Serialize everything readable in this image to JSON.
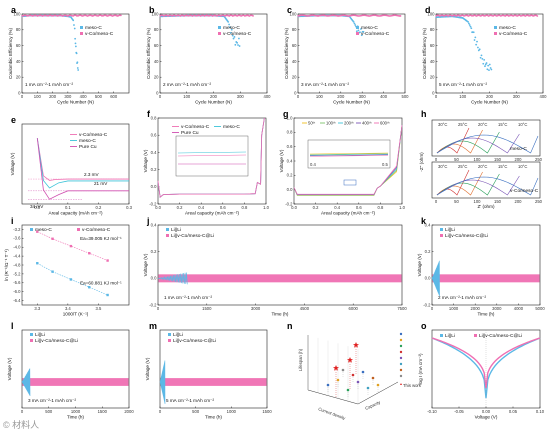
{
  "colors": {
    "blue": "#5bb8e6",
    "pink": "#ef6fb2",
    "purple": "#7a55b5",
    "green": "#7cc36b",
    "cyan": "#3cc3d8",
    "magenta": "#d04fb0",
    "gray": "#8a8a8a",
    "black": "#222222"
  },
  "watermark": "© 材料人",
  "chart_data": [
    {
      "id": "a",
      "type": "line",
      "label": "a",
      "xlabel": "Cycle Number (N)",
      "ylabel": "Coulombic Efficiency (%)",
      "xlim": [
        0,
        700
      ],
      "ylim": [
        0,
        100
      ],
      "xticks": [
        "0",
        "100",
        "200",
        "300",
        "400",
        "500",
        "600"
      ],
      "yticks": [
        "0",
        "20",
        "40",
        "60",
        "80",
        "100"
      ],
      "condition": "1 mA cm⁻²-1 mAh cm⁻²",
      "series": [
        {
          "name": "meso-C",
          "color": "blue",
          "x": [
            1,
            50,
            100,
            150,
            200,
            250,
            300,
            320,
            335,
            345,
            350,
            355,
            360,
            365,
            370
          ],
          "y": [
            97,
            98,
            98,
            98,
            98,
            98,
            97,
            96,
            92,
            80,
            65,
            55,
            40,
            30,
            25
          ]
        },
        {
          "name": "v-Co/meso-C",
          "color": "pink",
          "x": [
            1,
            100,
            200,
            300,
            400,
            500,
            600,
            650
          ],
          "y": [
            97,
            98,
            98,
            98,
            98,
            98,
            98,
            98
          ]
        }
      ]
    },
    {
      "id": "b",
      "type": "line",
      "label": "b",
      "xlabel": "Cycle Number (N)",
      "ylabel": "Coulombic Efficiency (%)",
      "xlim": [
        0,
        400
      ],
      "ylim": [
        0,
        100
      ],
      "xticks": [
        "0",
        "100",
        "200",
        "300",
        "400"
      ],
      "yticks": [
        "0",
        "20",
        "40",
        "60",
        "80",
        "100"
      ],
      "condition": "2 mA cm⁻²-1 mAh cm⁻²",
      "series": [
        {
          "name": "meso-C",
          "color": "blue",
          "x": [
            1,
            100,
            200,
            240,
            255,
            265,
            275,
            285,
            295,
            300
          ],
          "y": [
            97,
            98,
            98,
            97,
            90,
            80,
            70,
            62,
            65,
            60
          ]
        },
        {
          "name": "v-Co/meso-C",
          "color": "pink",
          "x": [
            1,
            100,
            200,
            300,
            350
          ],
          "y": [
            97,
            98,
            98,
            98,
            98
          ]
        }
      ]
    },
    {
      "id": "c",
      "type": "line",
      "label": "c",
      "xlabel": "Cycle Number (N)",
      "ylabel": "Coulombic Efficiency (%)",
      "xlim": [
        0,
        500
      ],
      "ylim": [
        0,
        100
      ],
      "xticks": [
        "0",
        "100",
        "200",
        "300",
        "400",
        "500"
      ],
      "yticks": [
        "0",
        "20",
        "40",
        "60",
        "80",
        "100"
      ],
      "condition": "3 mA cm⁻²-1 mAh cm⁻²",
      "series": [
        {
          "name": "meso-C",
          "color": "blue",
          "x": [
            1,
            100,
            200,
            240,
            260,
            275,
            290,
            310
          ],
          "y": [
            97,
            98,
            98,
            97,
            90,
            82,
            78,
            75
          ]
        },
        {
          "name": "v-Co/meso-C",
          "color": "pink",
          "x": [
            1,
            100,
            200,
            300,
            400,
            480
          ],
          "y": [
            97,
            98,
            98,
            98,
            98,
            98
          ]
        }
      ]
    },
    {
      "id": "d",
      "type": "line",
      "label": "d",
      "xlabel": "Cycle Number (N)",
      "ylabel": "Coulombic Efficiency (%)",
      "xlim": [
        0,
        400
      ],
      "ylim": [
        0,
        100
      ],
      "xticks": [
        "0",
        "100",
        "200",
        "300",
        "400"
      ],
      "yticks": [
        "0",
        "20",
        "40",
        "60",
        "80",
        "100"
      ],
      "condition": "5 mA cm⁻²-1 mAh cm⁻²",
      "series": [
        {
          "name": "meso-C",
          "color": "blue",
          "x": [
            1,
            60,
            100,
            120,
            135,
            150,
            160,
            170,
            180,
            195,
            210
          ],
          "y": [
            96,
            97,
            95,
            90,
            80,
            65,
            55,
            45,
            38,
            33,
            32
          ]
        },
        {
          "name": "v-Co/meso-C",
          "color": "pink",
          "x": [
            1,
            100,
            200,
            300,
            380
          ],
          "y": [
            97,
            98,
            98,
            98,
            98
          ]
        }
      ]
    },
    {
      "id": "e",
      "type": "line",
      "label": "e",
      "xlabel": "Areal capacity (mAh cm⁻²)",
      "ylabel": "Voltage (V)",
      "xlim": [
        -0.05,
        0.3
      ],
      "ylim": [
        -0.12,
        0.05
      ],
      "xticks": [
        "0.0",
        "0.1",
        "0.2",
        "0.3"
      ],
      "annotations": [
        "2.3 mV",
        "21 mV",
        "34 mV"
      ],
      "series": [
        {
          "name": "v-Co/meso-C",
          "color": "pink",
          "x": [
            0,
            0.02,
            0.04,
            0.06,
            0.1,
            0.2,
            0.3
          ],
          "y": [
            0.02,
            -0.06,
            -0.07,
            -0.068,
            -0.067,
            -0.067,
            -0.067
          ]
        },
        {
          "name": "meso-C",
          "color": "cyan",
          "x": [
            0,
            0.02,
            0.04,
            0.07,
            0.1,
            0.2,
            0.3
          ],
          "y": [
            0.02,
            -0.07,
            -0.086,
            -0.075,
            -0.071,
            -0.071,
            -0.071
          ]
        },
        {
          "name": "Pure Cu",
          "color": "magenta",
          "x": [
            0,
            0.02,
            0.04,
            0.07,
            0.1,
            0.2,
            0.3
          ],
          "y": [
            0.02,
            -0.09,
            -0.11,
            -0.1,
            -0.092,
            -0.092,
            -0.092
          ]
        }
      ]
    },
    {
      "id": "f",
      "type": "line",
      "label": "f",
      "xlabel": "Areal capacity (mAh cm⁻²)",
      "ylabel": "Voltage (V)",
      "xlim": [
        0,
        1.0
      ],
      "ylim": [
        -0.2,
        0.8
      ],
      "xticks": [
        "0.0",
        "0.2",
        "0.4",
        "0.6",
        "0.8",
        "1.0"
      ],
      "yticks": [
        "-0.2",
        "0.0",
        "0.2",
        "0.4",
        "0.6",
        "0.8"
      ],
      "series": [
        {
          "name": "v-Co/meso-C",
          "color": "pink"
        },
        {
          "name": "meso-C",
          "color": "cyan"
        },
        {
          "name": "Pure Cu",
          "color": "magenta"
        }
      ]
    },
    {
      "id": "g",
      "type": "line",
      "label": "g",
      "xlabel": "Areal capacity (mAh cm⁻²)",
      "ylabel": "Voltage (V)",
      "xlim": [
        0,
        1.0
      ],
      "ylim": [
        -0.2,
        1.0
      ],
      "xticks": [
        "0.0",
        "0.2",
        "0.4",
        "0.6",
        "0.8",
        "1.0"
      ],
      "yticks": [
        "-0.2",
        "0.0",
        "0.2",
        "0.4",
        "0.6",
        "0.8",
        "1.0"
      ],
      "legend": [
        "50ᵗʰ",
        "100ᵗʰ",
        "200ᵗʰ",
        "400ᵗʰ",
        "600ᵗʰ"
      ],
      "inset_ticks": [
        "0.4",
        "0.5"
      ]
    },
    {
      "id": "h",
      "type": "line",
      "label": "h",
      "xlabel": "Z' (ohm)",
      "ylabel": "-Z'' (ohm)",
      "temperatures": [
        "30°C",
        "25°C",
        "20°C",
        "15°C",
        "10°C"
      ],
      "panels": [
        {
          "name": "meso-C",
          "xticks": [
            "0",
            "50",
            "100",
            "150",
            "200",
            "250"
          ]
        },
        {
          "name": "v-Co/meso-C",
          "xticks": [
            "0",
            "50",
            "100",
            "150",
            "200",
            "250"
          ]
        }
      ]
    },
    {
      "id": "i",
      "type": "scatter",
      "label": "i",
      "xlabel": "1000/T (K⁻¹)",
      "ylabel": "ln (R⁻¹/Ω⁻¹ T⁻¹)",
      "xlim": [
        3.25,
        3.6
      ],
      "ylim": [
        -6.6,
        -3.0
      ],
      "xticks": [
        "3.3",
        "3.4",
        "3.5"
      ],
      "yticks": [
        "-3.2",
        "-3.6",
        "-4.0",
        "-4.4",
        "-4.8",
        "-5.2",
        "-5.6",
        "-6.0",
        "-6.4"
      ],
      "series": [
        {
          "name": "meso-C",
          "color": "blue",
          "x": [
            3.3,
            3.35,
            3.41,
            3.47,
            3.53
          ],
          "y": [
            -4.72,
            -5.1,
            -5.45,
            -5.8,
            -6.15
          ],
          "fit": "Ea=60.881 KJ mol⁻¹"
        },
        {
          "name": "v-Co/meso-C",
          "color": "pink",
          "x": [
            3.3,
            3.35,
            3.41,
            3.47,
            3.53
          ],
          "y": [
            -3.3,
            -3.62,
            -3.95,
            -4.27,
            -4.6
          ],
          "fit": "Ea=39.005 KJ mol⁻¹"
        }
      ]
    },
    {
      "id": "j",
      "type": "line",
      "label": "j",
      "xlabel": "Time (h)",
      "ylabel": "Voltage (V)",
      "xlim": [
        0,
        7500
      ],
      "ylim": [
        -0.2,
        0.4
      ],
      "xticks": [
        "0",
        "1500",
        "3000",
        "4500",
        "6000",
        "7500"
      ],
      "yticks": [
        "-0.2",
        "0.0",
        "0.2",
        "0.4"
      ],
      "condition": "1 mA cm⁻²-1 mAh cm⁻²",
      "series": [
        {
          "name": "Li||Li",
          "color": "blue",
          "end": 900
        },
        {
          "name": "Li||v-Co/meso-C@Li",
          "color": "pink",
          "end": 7500
        }
      ]
    },
    {
      "id": "k",
      "type": "line",
      "label": "k",
      "xlabel": "Time (h)",
      "ylabel": "Voltage (V)",
      "xlim": [
        0,
        5000
      ],
      "ylim": [
        -0.2,
        0.4
      ],
      "xticks": [
        "0",
        "1000",
        "2000",
        "3000",
        "4000",
        "5000"
      ],
      "yticks": [
        "-0.2",
        "0.0",
        "0.2",
        "0.4"
      ],
      "condition": "2 mA cm⁻²-1 mAh cm⁻²",
      "series": [
        {
          "name": "Li||Li",
          "color": "blue",
          "end": 350
        },
        {
          "name": "Li||v-Co/meso-C@Li",
          "color": "pink",
          "end": 5000
        }
      ]
    },
    {
      "id": "l",
      "type": "line",
      "label": "l",
      "xlabel": "Time (h)",
      "ylabel": "Voltage (V)",
      "xlim": [
        0,
        2000
      ],
      "ylim": [
        -0.2,
        0.4
      ],
      "xticks": [
        "0",
        "500",
        "1000",
        "1500",
        "2000"
      ],
      "condition": "3 mA cm⁻²-1 mAh cm⁻²",
      "series": [
        {
          "name": "Li||Li",
          "color": "blue",
          "end": 150
        },
        {
          "name": "Li||v-Co/meso-C@Li",
          "color": "pink",
          "end": 2000
        }
      ]
    },
    {
      "id": "m",
      "type": "line",
      "label": "m",
      "xlabel": "Time (h)",
      "ylabel": "Voltage (V)",
      "xlim": [
        0,
        1500
      ],
      "ylim": [
        -0.2,
        0.4
      ],
      "xticks": [
        "0",
        "500",
        "1000",
        "1500"
      ],
      "condition": "5 mA cm⁻²-1 mAh cm⁻²",
      "series": [
        {
          "name": "Li||Li",
          "color": "blue",
          "end": 70
        },
        {
          "name": "Li||v-Co/meso-C@Li",
          "color": "pink",
          "end": 1500
        }
      ]
    },
    {
      "id": "n",
      "type": "scatter",
      "label": "n",
      "xlabel": "Current density",
      "ylabel": "Capacity",
      "zlabel": "Lifespan (h)",
      "legend": [
        "Ref",
        "This work"
      ]
    },
    {
      "id": "o",
      "type": "line",
      "label": "o",
      "xlabel": "Voltage (V)",
      "ylabel": "log I (mA cm⁻²)",
      "xlim": [
        -0.1,
        0.1
      ],
      "xticks": [
        "-0.10",
        "-0.05",
        "0.00",
        "0.05",
        "0.10"
      ],
      "series": [
        {
          "name": "Li||Li",
          "color": "blue"
        },
        {
          "name": "Li||v-Co/meso-C@Li",
          "color": "pink"
        }
      ]
    }
  ]
}
